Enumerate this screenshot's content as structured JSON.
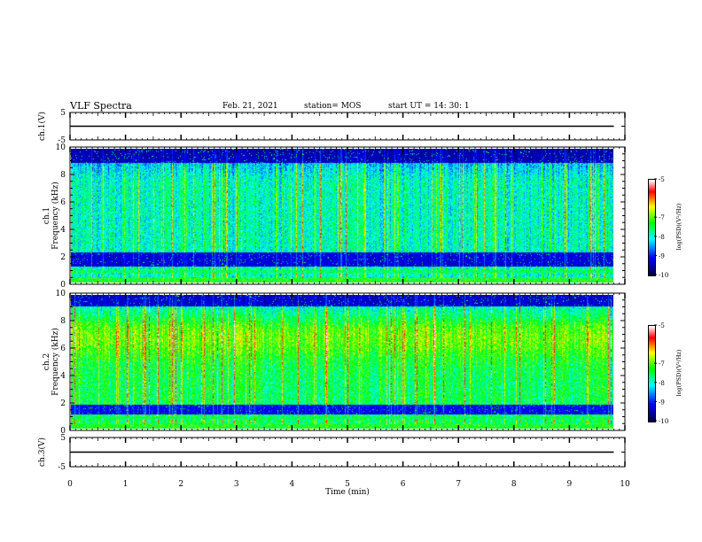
{
  "header": {
    "title": "VLF Spectra",
    "date": "Feb. 21, 2021",
    "station": "station= MOS",
    "start": "start  UT =   14: 30: 1"
  },
  "chart_data": [
    {
      "type": "line",
      "panel": "ch1-waveform",
      "ylabel": "ch.1(V)",
      "ylim": [
        -5,
        5
      ],
      "yticks": [
        "5",
        "-5"
      ],
      "series": [
        {
          "x": [
            0,
            9.8
          ],
          "y": [
            0,
            0
          ]
        }
      ]
    },
    {
      "type": "heatmap",
      "panel": "ch1-spectrogram",
      "ylabel": "ch.1\nFrequency  (kHz)",
      "ylim": [
        0,
        10
      ],
      "yticks": [
        "0",
        "2",
        "4",
        "6",
        "8",
        "10"
      ],
      "xlim": [
        0,
        9.8
      ],
      "dark_band_khz": [
        [
          1.2,
          2.2
        ],
        [
          9.0,
          10.0
        ]
      ],
      "colorbar": {
        "label": "log(PSD)(V²/Hz)",
        "range": [
          -10,
          -5
        ],
        "ticks": [
          "-5",
          "-7",
          "-8",
          "-9",
          "-10"
        ]
      }
    },
    {
      "type": "heatmap",
      "panel": "ch2-spectrogram",
      "ylabel": "ch.2\nFrequency  (kHz)",
      "ylim": [
        0,
        10
      ],
      "yticks": [
        "0",
        "2",
        "4",
        "6",
        "8",
        "10"
      ],
      "xlim": [
        0,
        9.8
      ],
      "dark_band_khz": [
        [
          1.0,
          1.8
        ],
        [
          9.2,
          10.0
        ]
      ],
      "colorbar": {
        "label": "log(PSD)(V²/Hz)",
        "range": [
          -10,
          -5
        ],
        "ticks": [
          "-5",
          "-7",
          "-8",
          "-9",
          "-10"
        ]
      }
    },
    {
      "type": "line",
      "panel": "ch3-waveform",
      "ylabel": "ch.3(V)",
      "ylim": [
        -5,
        5
      ],
      "yticks": [
        "5",
        "-5"
      ],
      "xlabel": "Time  (min)",
      "xlim": [
        0,
        10
      ],
      "xticks": [
        "0",
        "1",
        "2",
        "3",
        "4",
        "5",
        "6",
        "7",
        "8",
        "9",
        "10"
      ],
      "series": [
        {
          "x": [
            0,
            9.8
          ],
          "y": [
            0,
            0
          ]
        }
      ]
    }
  ],
  "colors": {
    "frame": "#000000",
    "colormap": [
      "#000050",
      "#0000ff",
      "#00ffff",
      "#00ff00",
      "#ffff00",
      "#ff0000",
      "#ffffff"
    ]
  }
}
